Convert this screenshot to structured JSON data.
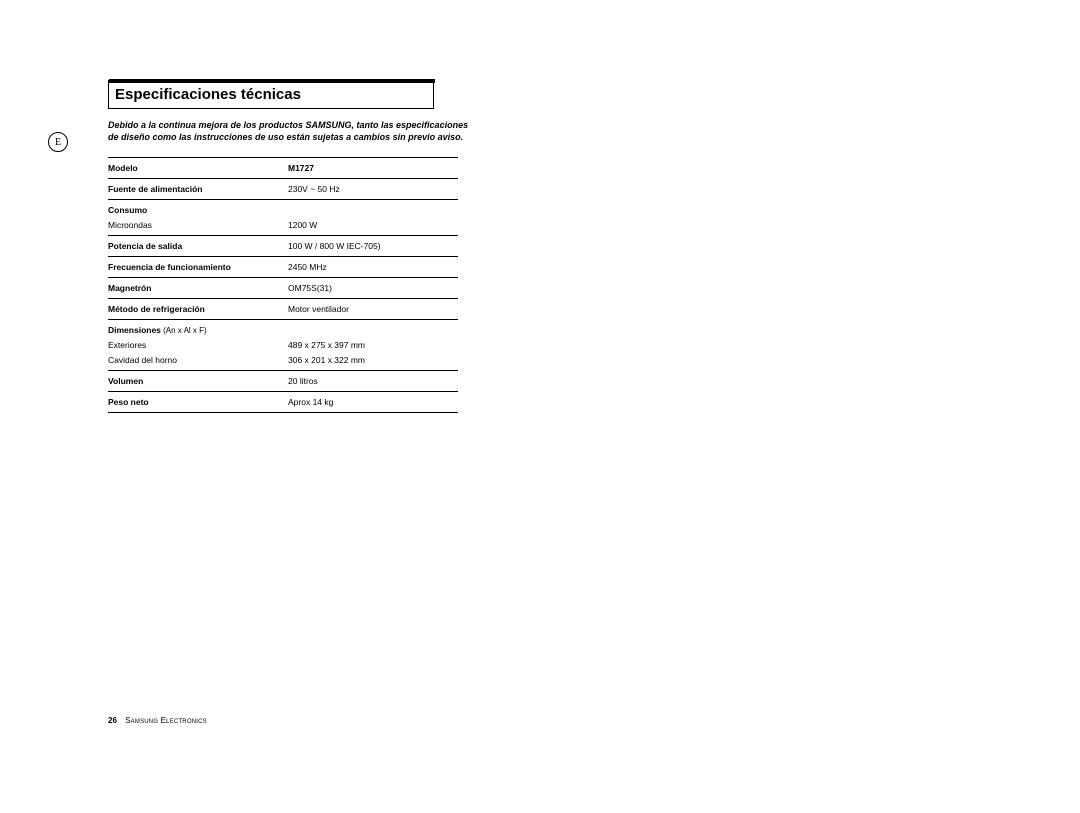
{
  "icon_letter": "E",
  "title": "Especificaciones técnicas",
  "disclaimer": "Debido a la continua mejora de los productos SAMSUNG, tanto las especificaciones de diseño como las instrucciones de uso están sujetas a cambios sin previo aviso.",
  "rows": [
    {
      "hr": true
    },
    {
      "label_bold": "Modelo",
      "value_bold": "M1727"
    },
    {
      "hr": true
    },
    {
      "label_bold": "Fuente de alimentación",
      "value": "230V ~ 50 Hz"
    },
    {
      "hr": true
    },
    {
      "label_bold": "Consumo"
    },
    {
      "label": "Microondas",
      "value": "1200 W",
      "tight": true
    },
    {
      "hr": true
    },
    {
      "label_bold": "Potencia de salida",
      "value": "100 W / 800 W  IEC-705)"
    },
    {
      "hr": true
    },
    {
      "label_bold": "Frecuencia de funcionamiento",
      "value": "2450 MHz"
    },
    {
      "hr": true
    },
    {
      "label_bold": "Magnetrón",
      "value": "OM75S(31)"
    },
    {
      "hr": true
    },
    {
      "label_bold": "Método de refrigeración",
      "value": " Motor ventilador"
    },
    {
      "hr": true
    },
    {
      "label_bold": "Dimensiones",
      "label_note": " (An x Al x F)"
    },
    {
      "label": "Exteriores",
      "value": "489 x 275 x 397 mm",
      "tight": true
    },
    {
      "label": "Cavidad del horno",
      "value": "306 x 201 x 322 mm",
      "tight": true
    },
    {
      "hr": true
    },
    {
      "label_bold": "Volumen",
      "value": "20 litros"
    },
    {
      "hr": true
    },
    {
      "label_bold": "Peso neto",
      "value": "Aprox 14 kg"
    },
    {
      "hr": true
    }
  ],
  "footer": {
    "page_number": "26",
    "company": "Samsung Electronics"
  },
  "colors": {
    "text": "#000000",
    "bg": "#ffffff"
  }
}
